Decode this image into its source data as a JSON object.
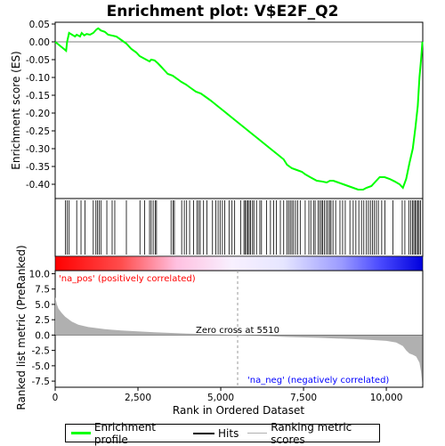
{
  "chart_data": {
    "type": "line",
    "title": "Enrichment plot: V$E2F_Q2",
    "xlabel": "Rank in Ordered Dataset",
    "top_panel": {
      "ylabel": "Enrichment score (ES)",
      "xlim": [
        0,
        11100
      ],
      "ylim": [
        -0.44,
        0.055
      ],
      "yticks": [
        "0.05",
        "0.00",
        "-0.05",
        "-0.10",
        "-0.15",
        "-0.20",
        "-0.25",
        "-0.30",
        "-0.35",
        "-0.40"
      ],
      "ytick_values": [
        0.05,
        0.0,
        -0.05,
        -0.1,
        -0.15,
        -0.2,
        -0.25,
        -0.3,
        -0.35,
        -0.4
      ],
      "series": [
        {
          "name": "Enrichment profile",
          "color": "#00ff00",
          "x": [
            0,
            200,
            330,
            360,
            420,
            600,
            650,
            750,
            800,
            880,
            950,
            1050,
            1150,
            1250,
            1300,
            1380,
            1500,
            1600,
            1700,
            1850,
            2000,
            2150,
            2300,
            2450,
            2550,
            2650,
            2750,
            2850,
            2900,
            3000,
            3100,
            3200,
            3300,
            3400,
            3550,
            3700,
            3800,
            3950,
            4100,
            4250,
            4400,
            4550,
            4700,
            4900,
            5100,
            5300,
            5500,
            5700,
            5900,
            6100,
            6300,
            6500,
            6700,
            6900,
            7000,
            7150,
            7300,
            7450,
            7550,
            7700,
            7900,
            8050,
            8200,
            8300,
            8400,
            8550,
            8700,
            8850,
            9000,
            9150,
            9300,
            9400,
            9550,
            9650,
            9800,
            9950,
            10100,
            10250,
            10400,
            10500,
            10600,
            10700,
            10800,
            10880,
            10950,
            11000,
            11050,
            11090
          ],
          "y": [
            0.0,
            -0.015,
            -0.025,
            0.0,
            0.025,
            0.015,
            0.02,
            0.015,
            0.025,
            0.018,
            0.022,
            0.02,
            0.025,
            0.035,
            0.038,
            0.032,
            0.028,
            0.02,
            0.018,
            0.015,
            0.005,
            -0.005,
            -0.02,
            -0.03,
            -0.04,
            -0.045,
            -0.05,
            -0.055,
            -0.05,
            -0.052,
            -0.06,
            -0.07,
            -0.08,
            -0.09,
            -0.095,
            -0.105,
            -0.112,
            -0.12,
            -0.13,
            -0.14,
            -0.145,
            -0.155,
            -0.165,
            -0.18,
            -0.195,
            -0.21,
            -0.225,
            -0.24,
            -0.255,
            -0.27,
            -0.285,
            -0.3,
            -0.315,
            -0.33,
            -0.345,
            -0.355,
            -0.36,
            -0.365,
            -0.372,
            -0.38,
            -0.39,
            -0.392,
            -0.395,
            -0.39,
            -0.39,
            -0.395,
            -0.4,
            -0.405,
            -0.41,
            -0.415,
            -0.415,
            -0.41,
            -0.405,
            -0.395,
            -0.38,
            -0.38,
            -0.385,
            -0.392,
            -0.4,
            -0.41,
            -0.385,
            -0.34,
            -0.3,
            -0.24,
            -0.18,
            -0.1,
            -0.05,
            0.0
          ]
        }
      ]
    },
    "hits_panel": {
      "label": "Hits",
      "hit_ranks": [
        310,
        360,
        420,
        650,
        780,
        900,
        1150,
        1230,
        1280,
        1330,
        1380,
        1560,
        1720,
        1800,
        2150,
        2560,
        2700,
        2850,
        2900,
        2960,
        3020,
        3060,
        3500,
        3560,
        3600,
        3820,
        3900,
        3970,
        4060,
        4180,
        4280,
        4330,
        4380,
        4480,
        4580,
        4750,
        4850,
        4920,
        4980,
        5050,
        5120,
        5250,
        5340,
        5420,
        5600,
        5700,
        5740,
        5780,
        5820,
        5860,
        5900,
        5960,
        6000,
        6080,
        6180,
        6230,
        6380,
        6500,
        6600,
        6680,
        6800,
        6900,
        7000,
        7050,
        7100,
        7150,
        7200,
        7260,
        7320,
        7400,
        7550,
        7660,
        7720,
        7800,
        7850,
        7940,
        7990,
        8040,
        8080,
        8130,
        8190,
        8240,
        8290,
        8330,
        8390,
        8470,
        8600,
        8680,
        8760,
        8900,
        9000,
        9080,
        9170,
        9250,
        9320,
        9400,
        9460,
        9520,
        9580,
        9640,
        9700,
        9760,
        9860,
        9960,
        10200,
        10480,
        10560,
        10680,
        10740,
        10790,
        10830,
        10870,
        10910,
        10950,
        10990,
        11030
      ]
    },
    "metric_panel": {
      "ylabel": "Ranked list metric (PreRanked)",
      "ylim": [
        -8.5,
        10.5
      ],
      "yticks": [
        "10.0",
        "7.5",
        "5.0",
        "2.5",
        "0.0",
        "-2.5",
        "-5.0",
        "-7.5"
      ],
      "ytick_values": [
        10.0,
        7.5,
        5.0,
        2.5,
        0.0,
        -2.5,
        -5.0,
        -7.5
      ],
      "fill_color": "#b0b0b0",
      "x": [
        0,
        50,
        100,
        200,
        300,
        500,
        700,
        1000,
        1500,
        2000,
        2500,
        3000,
        3500,
        4000,
        4500,
        5000,
        5510,
        6000,
        6500,
        7000,
        7500,
        8000,
        8500,
        9000,
        9500,
        10000,
        10300,
        10500,
        10600,
        10700,
        10800,
        10900,
        11000,
        11050,
        11090
      ],
      "y": [
        6.2,
        5.0,
        4.3,
        3.6,
        3.0,
        2.2,
        1.7,
        1.3,
        0.95,
        0.75,
        0.6,
        0.45,
        0.35,
        0.25,
        0.17,
        0.08,
        0.0,
        -0.1,
        -0.2,
        -0.3,
        -0.38,
        -0.45,
        -0.55,
        -0.65,
        -0.78,
        -0.95,
        -1.2,
        -1.8,
        -2.5,
        -3.0,
        -3.2,
        -3.5,
        -4.5,
        -6.0,
        -8.0
      ],
      "zero_cross_rank": 5510,
      "zero_cross_label": "Zero cross at 5510",
      "pos_label": "'na_pos' (positively correlated)",
      "neg_label": "'na_neg' (negatively correlated)",
      "pos_color": "#ff0000",
      "neg_color": "#0000ff"
    },
    "xticks": [
      "0",
      "2,500",
      "5,000",
      "7,500",
      "10,000"
    ],
    "xtick_values": [
      0,
      2500,
      5000,
      7500,
      10000
    ],
    "legend": [
      {
        "label": "Enrichment profile",
        "color": "#00ff00"
      },
      {
        "label": "Hits",
        "color": "#000000"
      },
      {
        "label": "Ranking metric scores",
        "color": "#b0b0b0"
      }
    ]
  }
}
